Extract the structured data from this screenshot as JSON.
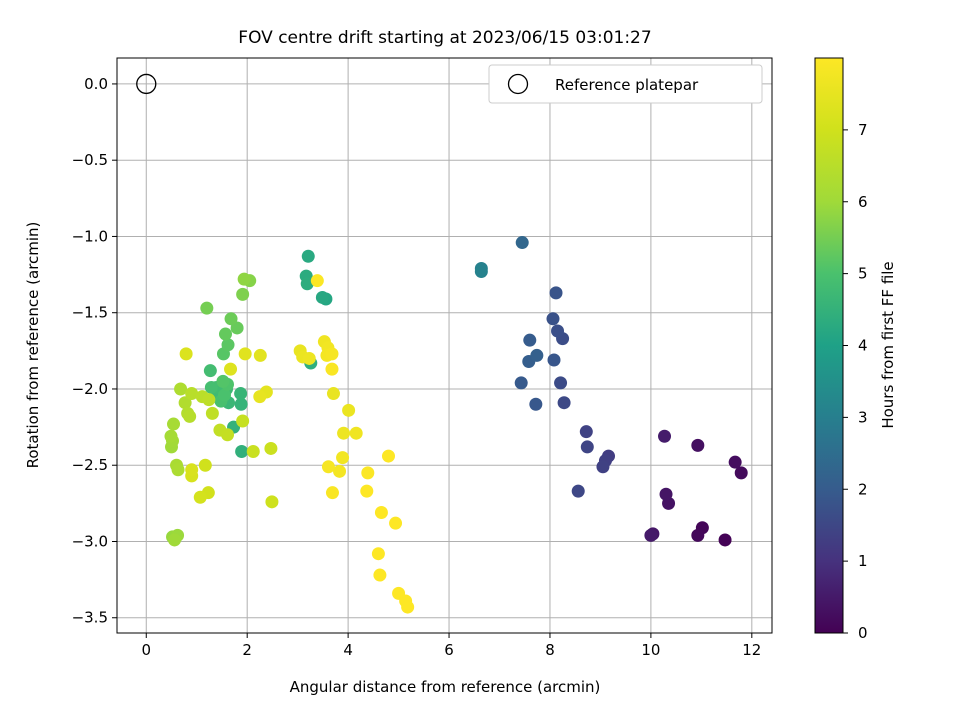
{
  "chart_data": {
    "type": "scatter",
    "title": "FOV centre drift starting at 2023/06/15 03:01:27",
    "xlabel": "Angular distance from reference (arcmin)",
    "ylabel": "Rotation from reference (arcmin)",
    "xlim": [
      -0.58,
      12.4
    ],
    "ylim": [
      -3.6,
      0.17
    ],
    "xticks": [
      0,
      2,
      4,
      6,
      8,
      10,
      12
    ],
    "yticks": [
      0.0,
      -0.5,
      -1.0,
      -1.5,
      -2.0,
      -2.5,
      -3.0,
      -3.5
    ],
    "xtick_labels": [
      "0",
      "2",
      "4",
      "6",
      "8",
      "10",
      "12"
    ],
    "ytick_labels": [
      "0.0",
      "−0.5",
      "−1.0",
      "−1.5",
      "−2.0",
      "−2.5",
      "−3.0",
      "−3.5"
    ],
    "grid": true,
    "colormap": "viridis",
    "colorbar": {
      "label": "Hours from first FF file",
      "range": [
        0,
        8
      ],
      "ticks": [
        0,
        1,
        2,
        3,
        4,
        5,
        6,
        7
      ],
      "tick_labels": [
        "0",
        "1",
        "2",
        "3",
        "4",
        "5",
        "6",
        "7"
      ]
    },
    "legend": {
      "placement": "top-right",
      "label": "Reference platepar"
    },
    "reference_point": {
      "x": 0,
      "y": 0
    },
    "points": [
      {
        "x": 11.47,
        "y": -2.99,
        "h": 0.05
      },
      {
        "x": 11.02,
        "y": -2.91,
        "h": 0.1
      },
      {
        "x": 10.93,
        "y": -2.96,
        "h": 0.15
      },
      {
        "x": 11.79,
        "y": -2.55,
        "h": 0.2
      },
      {
        "x": 11.67,
        "y": -2.48,
        "h": 0.25
      },
      {
        "x": 10.93,
        "y": -2.37,
        "h": 0.3
      },
      {
        "x": 10.35,
        "y": -2.75,
        "h": 0.35
      },
      {
        "x": 10.3,
        "y": -2.69,
        "h": 0.4
      },
      {
        "x": 10.04,
        "y": -2.95,
        "h": 0.45
      },
      {
        "x": 10.0,
        "y": -2.96,
        "h": 0.5
      },
      {
        "x": 10.27,
        "y": -2.31,
        "h": 0.55
      },
      {
        "x": 9.16,
        "y": -2.44,
        "h": 1.25
      },
      {
        "x": 9.1,
        "y": -2.47,
        "h": 1.3
      },
      {
        "x": 9.05,
        "y": -2.51,
        "h": 1.35
      },
      {
        "x": 8.72,
        "y": -2.28,
        "h": 1.4
      },
      {
        "x": 8.74,
        "y": -2.38,
        "h": 1.45
      },
      {
        "x": 8.56,
        "y": -2.67,
        "h": 1.5
      },
      {
        "x": 8.28,
        "y": -2.09,
        "h": 1.55
      },
      {
        "x": 8.21,
        "y": -1.96,
        "h": 1.6
      },
      {
        "x": 8.25,
        "y": -1.67,
        "h": 1.65
      },
      {
        "x": 8.15,
        "y": -1.62,
        "h": 1.7
      },
      {
        "x": 8.06,
        "y": -1.54,
        "h": 1.75
      },
      {
        "x": 8.12,
        "y": -1.37,
        "h": 1.8
      },
      {
        "x": 8.08,
        "y": -1.81,
        "h": 1.85
      },
      {
        "x": 7.72,
        "y": -2.1,
        "h": 1.9
      },
      {
        "x": 7.43,
        "y": -1.96,
        "h": 1.95
      },
      {
        "x": 7.6,
        "y": -1.68,
        "h": 2.0
      },
      {
        "x": 7.58,
        "y": -1.82,
        "h": 2.05
      },
      {
        "x": 7.74,
        "y": -1.78,
        "h": 2.1
      },
      {
        "x": 7.45,
        "y": -1.04,
        "h": 2.3
      },
      {
        "x": 6.64,
        "y": -1.21,
        "h": 3.05
      },
      {
        "x": 6.64,
        "y": -1.23,
        "h": 3.1
      },
      {
        "x": 3.56,
        "y": -1.41,
        "h": 4.15
      },
      {
        "x": 3.49,
        "y": -1.4,
        "h": 4.2
      },
      {
        "x": 3.21,
        "y": -1.13,
        "h": 4.25
      },
      {
        "x": 3.17,
        "y": -1.26,
        "h": 4.3
      },
      {
        "x": 3.19,
        "y": -1.31,
        "h": 4.35
      },
      {
        "x": 3.26,
        "y": -1.83,
        "h": 4.4
      },
      {
        "x": 1.89,
        "y": -2.41,
        "h": 4.45
      },
      {
        "x": 1.73,
        "y": -2.25,
        "h": 4.5
      },
      {
        "x": 1.88,
        "y": -2.1,
        "h": 4.55
      },
      {
        "x": 1.87,
        "y": -2.03,
        "h": 4.6
      },
      {
        "x": 1.63,
        "y": -2.09,
        "h": 4.65
      },
      {
        "x": 1.59,
        "y": -2.0,
        "h": 4.7
      },
      {
        "x": 1.42,
        "y": -2.04,
        "h": 4.75
      },
      {
        "x": 1.39,
        "y": -1.99,
        "h": 4.8
      },
      {
        "x": 1.27,
        "y": -1.88,
        "h": 4.85
      },
      {
        "x": 1.29,
        "y": -1.99,
        "h": 4.9
      },
      {
        "x": 1.48,
        "y": -2.08,
        "h": 4.95
      },
      {
        "x": 1.55,
        "y": -2.04,
        "h": 5.0
      },
      {
        "x": 1.61,
        "y": -1.97,
        "h": 5.05
      },
      {
        "x": 1.52,
        "y": -1.95,
        "h": 5.1
      },
      {
        "x": 1.53,
        "y": -1.77,
        "h": 5.15
      },
      {
        "x": 1.62,
        "y": -1.71,
        "h": 5.2
      },
      {
        "x": 1.57,
        "y": -1.64,
        "h": 5.3
      },
      {
        "x": 1.8,
        "y": -1.6,
        "h": 5.35
      },
      {
        "x": 1.68,
        "y": -1.54,
        "h": 5.4
      },
      {
        "x": 1.2,
        "y": -1.47,
        "h": 5.5
      },
      {
        "x": 1.91,
        "y": -1.38,
        "h": 5.6
      },
      {
        "x": 2.05,
        "y": -1.29,
        "h": 5.7
      },
      {
        "x": 1.94,
        "y": -1.28,
        "h": 5.8
      },
      {
        "x": 0.52,
        "y": -2.97,
        "h": 5.9
      },
      {
        "x": 0.62,
        "y": -2.96,
        "h": 5.95
      },
      {
        "x": 0.56,
        "y": -2.99,
        "h": 6.0
      },
      {
        "x": 0.5,
        "y": -2.38,
        "h": 6.0
      },
      {
        "x": 0.52,
        "y": -2.34,
        "h": 6.05
      },
      {
        "x": 0.49,
        "y": -2.31,
        "h": 6.1
      },
      {
        "x": 0.54,
        "y": -2.23,
        "h": 6.15
      },
      {
        "x": 0.6,
        "y": -2.5,
        "h": 6.2
      },
      {
        "x": 0.63,
        "y": -2.53,
        "h": 6.25
      },
      {
        "x": 0.68,
        "y": -2.0,
        "h": 6.3
      },
      {
        "x": 0.77,
        "y": -2.09,
        "h": 6.35
      },
      {
        "x": 0.82,
        "y": -2.16,
        "h": 6.4
      },
      {
        "x": 0.86,
        "y": -2.18,
        "h": 6.45
      },
      {
        "x": 0.9,
        "y": -2.03,
        "h": 6.5
      },
      {
        "x": 1.11,
        "y": -2.05,
        "h": 6.55
      },
      {
        "x": 1.24,
        "y": -2.07,
        "h": 6.6
      },
      {
        "x": 1.31,
        "y": -2.16,
        "h": 6.65
      },
      {
        "x": 1.46,
        "y": -2.27,
        "h": 6.7
      },
      {
        "x": 1.61,
        "y": -2.3,
        "h": 6.75
      },
      {
        "x": 1.91,
        "y": -2.21,
        "h": 6.8
      },
      {
        "x": 2.12,
        "y": -2.41,
        "h": 6.85
      },
      {
        "x": 2.47,
        "y": -2.39,
        "h": 6.9
      },
      {
        "x": 2.49,
        "y": -2.74,
        "h": 6.95
      },
      {
        "x": 1.17,
        "y": -2.5,
        "h": 7.0
      },
      {
        "x": 1.23,
        "y": -2.68,
        "h": 7.05
      },
      {
        "x": 1.07,
        "y": -2.71,
        "h": 7.1
      },
      {
        "x": 0.9,
        "y": -2.57,
        "h": 7.15
      },
      {
        "x": 0.9,
        "y": -2.53,
        "h": 7.2
      },
      {
        "x": 0.79,
        "y": -1.77,
        "h": 7.25
      },
      {
        "x": 1.67,
        "y": -1.87,
        "h": 7.3
      },
      {
        "x": 1.96,
        "y": -1.77,
        "h": 7.35
      },
      {
        "x": 2.26,
        "y": -1.78,
        "h": 7.4
      },
      {
        "x": 2.38,
        "y": -2.02,
        "h": 7.45
      },
      {
        "x": 2.25,
        "y": -2.05,
        "h": 7.5
      },
      {
        "x": 3.05,
        "y": -1.75,
        "h": 7.55
      },
      {
        "x": 3.1,
        "y": -1.79,
        "h": 7.6
      },
      {
        "x": 3.23,
        "y": -1.8,
        "h": 7.65
      },
      {
        "x": 3.53,
        "y": -1.69,
        "h": 7.7
      },
      {
        "x": 3.6,
        "y": -1.73,
        "h": 7.75
      },
      {
        "x": 3.58,
        "y": -1.78,
        "h": 7.8
      },
      {
        "x": 3.68,
        "y": -1.77,
        "h": 7.85
      },
      {
        "x": 3.68,
        "y": -1.87,
        "h": 7.9
      },
      {
        "x": 3.39,
        "y": -1.29,
        "h": 7.95
      },
      {
        "x": 3.71,
        "y": -2.03,
        "h": 7.55
      },
      {
        "x": 4.01,
        "y": -2.14,
        "h": 7.6
      },
      {
        "x": 3.91,
        "y": -2.29,
        "h": 7.65
      },
      {
        "x": 4.16,
        "y": -2.29,
        "h": 7.7
      },
      {
        "x": 3.89,
        "y": -2.45,
        "h": 7.75
      },
      {
        "x": 3.83,
        "y": -2.54,
        "h": 7.8
      },
      {
        "x": 3.61,
        "y": -2.51,
        "h": 7.85
      },
      {
        "x": 3.69,
        "y": -2.68,
        "h": 7.9
      },
      {
        "x": 4.39,
        "y": -2.55,
        "h": 7.95
      },
      {
        "x": 4.37,
        "y": -2.67,
        "h": 8.0
      },
      {
        "x": 4.8,
        "y": -2.44,
        "h": 8.0
      },
      {
        "x": 4.66,
        "y": -2.81,
        "h": 8.0
      },
      {
        "x": 4.94,
        "y": -2.88,
        "h": 8.0
      },
      {
        "x": 4.6,
        "y": -3.08,
        "h": 8.0
      },
      {
        "x": 4.63,
        "y": -3.22,
        "h": 8.0
      },
      {
        "x": 5.0,
        "y": -3.34,
        "h": 8.0
      },
      {
        "x": 5.14,
        "y": -3.39,
        "h": 8.0
      },
      {
        "x": 5.18,
        "y": -3.43,
        "h": 8.0
      }
    ]
  }
}
